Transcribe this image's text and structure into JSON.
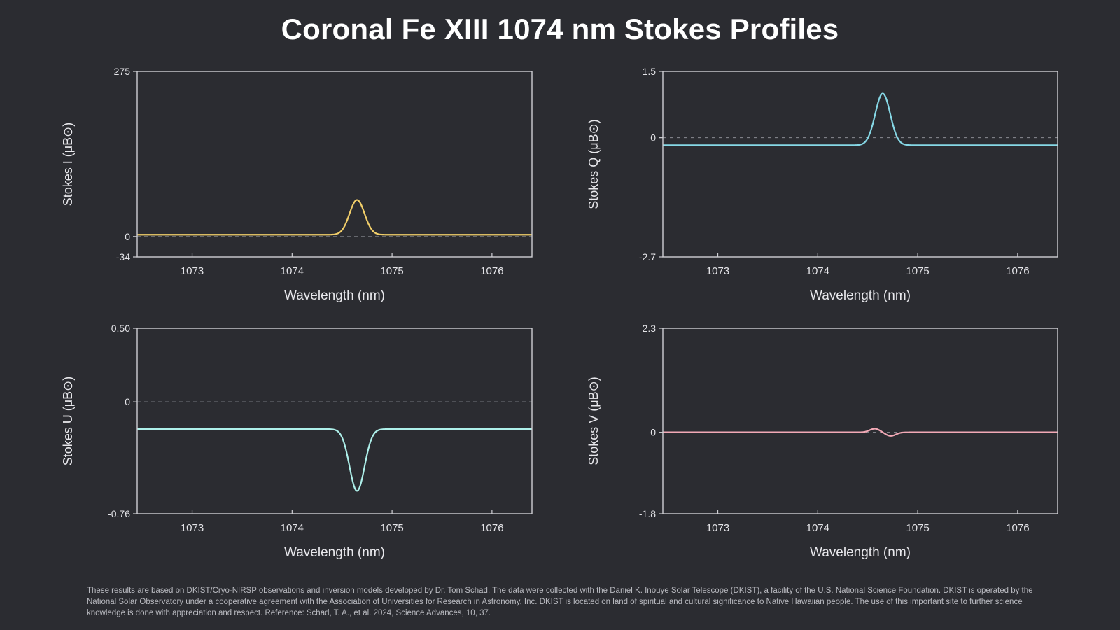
{
  "title": "Coronal Fe XIII 1074 nm Stokes Profiles",
  "footer": "These results are based on DKIST/Cryo-NIRSP observations and inversion models developed by Dr. Tom Schad. The data were collected with the Daniel K. Inouye Solar Telescope (DKIST), a facility of the U.S. National Science Foundation. DKIST is operated by the National Solar Observatory under a cooperative agreement with the Association of Universities for Research in Astronomy, Inc. DKIST is located on land of spiritual and cultural significance to Native Hawaiian people. The use of this important site to further science knowledge is done with appreciation and respect. Reference: Schad, T. A., et al. 2024, Science Advances, 10, 37.",
  "colors": {
    "background": "#2b2c31",
    "axis": "#cfcfd4",
    "zero_line": "#8a8b92"
  },
  "chart_data": [
    {
      "type": "line",
      "id": "stokes-i",
      "title": "",
      "xlabel": "Wavelength (nm)",
      "ylabel": "Stokes I (μB⊙)",
      "xlim": [
        1072.45,
        1076.4
      ],
      "ylim": [
        -34,
        275
      ],
      "xticks": [
        1073,
        1074,
        1075,
        1076
      ],
      "yticks": [
        275,
        0,
        -34
      ],
      "ytick_labels": [
        "275",
        "0",
        "-34"
      ],
      "zero_line": true,
      "grid": false,
      "series": [
        {
          "color": "#f2cf6a",
          "baseline": 3,
          "components": [
            {
              "amplitude": 58,
              "center": 1074.65,
              "sigma": 0.075
            }
          ]
        }
      ]
    },
    {
      "type": "line",
      "id": "stokes-q",
      "title": "",
      "xlabel": "Wavelength (nm)",
      "ylabel": "Stokes Q (μB⊙)",
      "xlim": [
        1072.45,
        1076.4
      ],
      "ylim": [
        -2.7,
        1.5
      ],
      "xticks": [
        1073,
        1074,
        1075,
        1076
      ],
      "yticks": [
        1.5,
        0,
        -2.7
      ],
      "ytick_labels": [
        "1.5",
        "0",
        "-2.7"
      ],
      "zero_line": true,
      "grid": false,
      "series": [
        {
          "color": "#86d8e6",
          "baseline": -0.17,
          "components": [
            {
              "amplitude": 1.17,
              "center": 1074.65,
              "sigma": 0.075
            }
          ]
        }
      ]
    },
    {
      "type": "line",
      "id": "stokes-u",
      "title": "",
      "xlabel": "Wavelength (nm)",
      "ylabel": "Stokes U (μB⊙)",
      "xlim": [
        1072.45,
        1076.4
      ],
      "ylim": [
        -0.76,
        0.5
      ],
      "xticks": [
        1073,
        1074,
        1075,
        1076
      ],
      "yticks": [
        0.5,
        0,
        -0.76
      ],
      "ytick_labels": [
        "0.50",
        "0",
        "-0.76"
      ],
      "zero_line": true,
      "grid": false,
      "series": [
        {
          "color": "#aef0ea",
          "baseline": -0.185,
          "components": [
            {
              "amplitude": -0.42,
              "center": 1074.65,
              "sigma": 0.075
            }
          ]
        }
      ]
    },
    {
      "type": "line",
      "id": "stokes-v",
      "title": "",
      "xlabel": "Wavelength (nm)",
      "ylabel": "Stokes V (μB⊙)",
      "xlim": [
        1072.45,
        1076.4
      ],
      "ylim": [
        -1.8,
        2.3
      ],
      "xticks": [
        1073,
        1074,
        1075,
        1076
      ],
      "yticks": [
        2.3,
        0,
        -1.8
      ],
      "ytick_labels": [
        "2.3",
        "0",
        "-1.8"
      ],
      "zero_line": true,
      "grid": false,
      "series": [
        {
          "color": "#f2a9b6",
          "baseline": 0,
          "components": [
            {
              "amplitude": 0.08,
              "center": 1074.57,
              "sigma": 0.05
            },
            {
              "amplitude": -0.08,
              "center": 1074.73,
              "sigma": 0.05
            }
          ]
        }
      ]
    }
  ]
}
